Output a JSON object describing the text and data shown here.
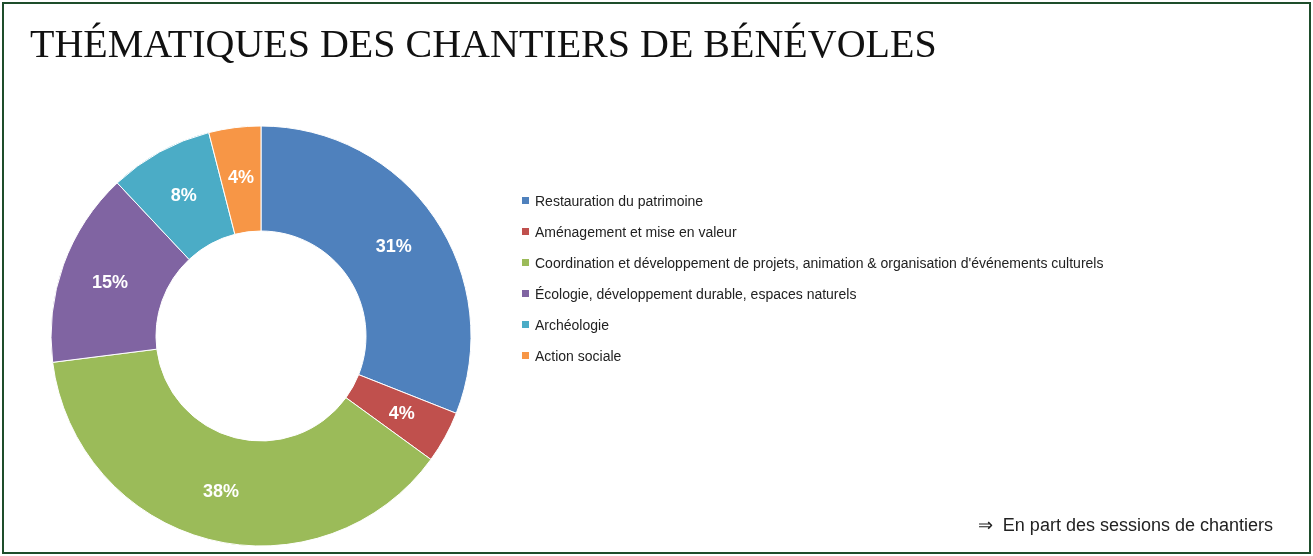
{
  "chart_data": {
    "type": "donut",
    "title": "THÉMATIQUES DES CHANTIERS DE BÉNÉVOLES",
    "categories": [
      "Restauration du patrimoine",
      "Aménagement et mise en valeur",
      "Coordination et développement de projets, animation & organisation d'événements culturels",
      "Écologie, développement durable, espaces naturels",
      "Archéologie",
      "Action sociale"
    ],
    "values": [
      31,
      4,
      38,
      15,
      8,
      4
    ],
    "colors": [
      "#4f81bd",
      "#c0504d",
      "#9bbb59",
      "#8064a2",
      "#4bacc6",
      "#f79646"
    ],
    "value_labels": [
      "31%",
      "4%",
      "38%",
      "15%",
      "8%",
      "4%"
    ],
    "legend": "right",
    "annotations": [
      "⇒  En part des sessions de chantiers"
    ]
  }
}
